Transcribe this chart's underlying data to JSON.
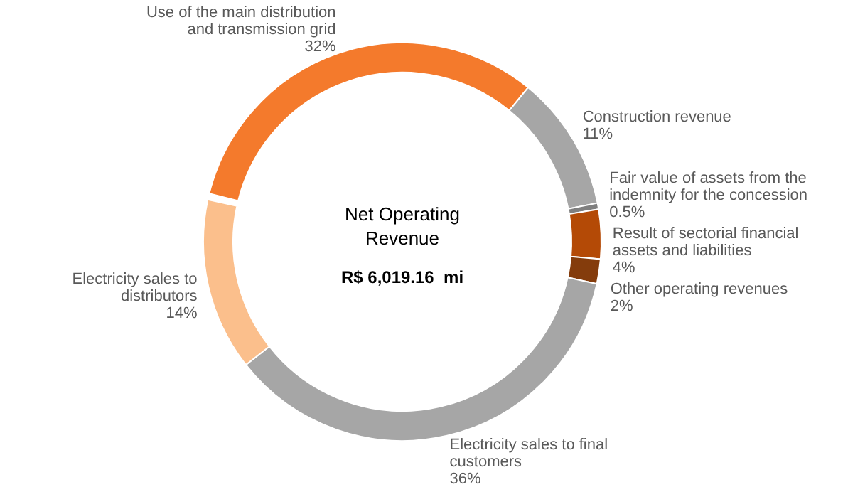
{
  "chart_data": {
    "type": "donut",
    "title": "Net Operating Revenue",
    "categories": [
      "Use of the main distribution and transmission grid",
      "Construction revenue",
      "Fair value of assets from the indemnity for the concession",
      "Result of sectorial financial assets and liabilities",
      "Other operating revenues",
      "Electricity sales to final customers",
      "Electricity sales to distributors"
    ],
    "values": [
      32,
      11,
      0.5,
      4,
      2,
      36,
      14
    ],
    "value_labels": [
      "32%",
      "11%",
      "0.5%",
      "4%",
      "2%",
      "36%",
      "14%"
    ],
    "colors": [
      "#f47a2c",
      "#a6a6a6",
      "#7f7f7f",
      "#b44a06",
      "#843c0c",
      "#a6a6a6",
      "#fbbf8c"
    ],
    "annotations": [
      "R$ 6,019.16  mi"
    ]
  }
}
